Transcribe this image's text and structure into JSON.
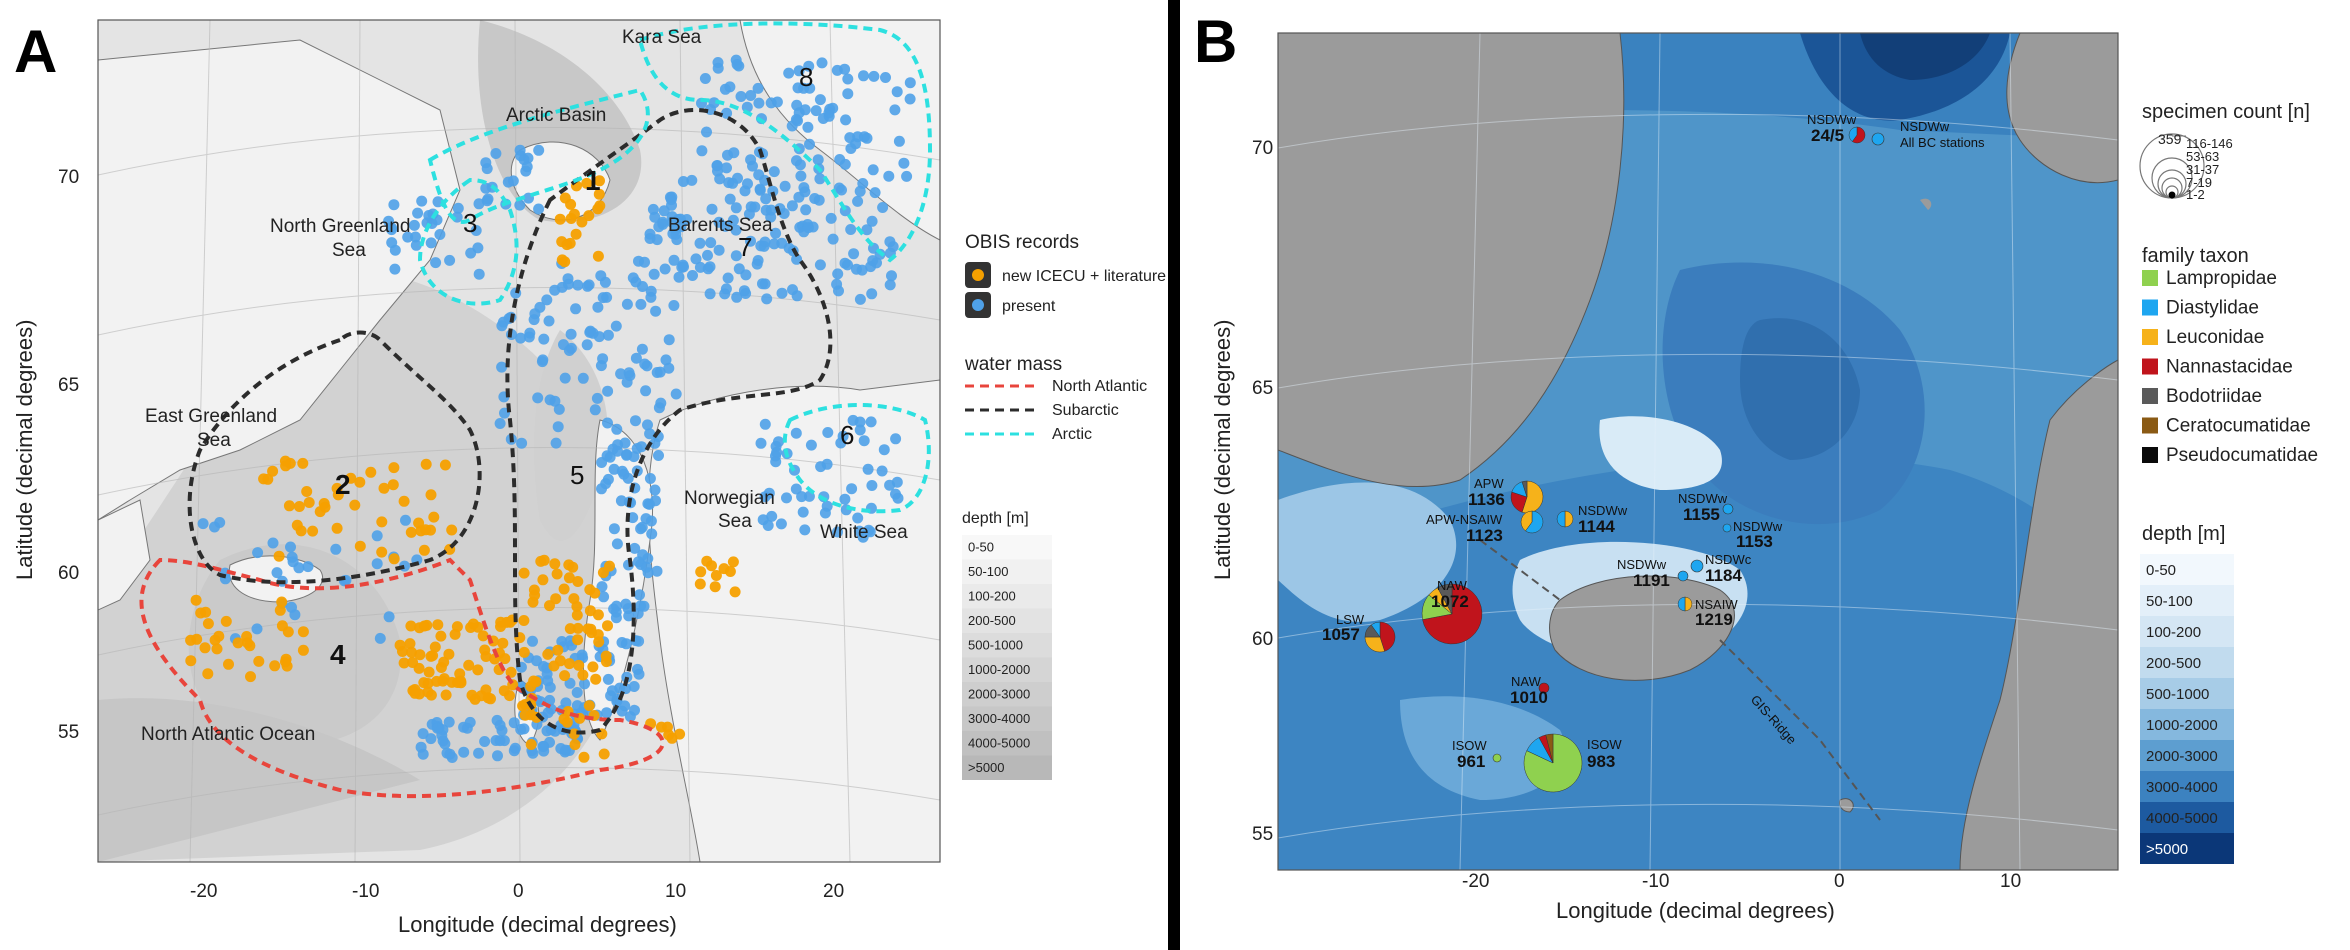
{
  "panel_a": {
    "label": "A",
    "y_axis_label": "Latitude (decimal degrees)",
    "x_axis_label": "Longitude (decimal degrees)",
    "lat_ticks": [
      "70",
      "65",
      "60",
      "55"
    ],
    "lon_ticks": [
      "-20",
      "-10",
      "0",
      "10",
      "20"
    ],
    "place_names": {
      "kara": "Kara Sea",
      "arctic_basin": "Arctic Basin",
      "north_greenland_1": "North Greenland",
      "north_greenland_2": "Sea",
      "barents": "Barents Sea",
      "east_greenland_1": "East Greenland",
      "east_greenland_2": "Sea",
      "norwegian_1": "Norwegian",
      "norwegian_2": "Sea",
      "white": "White Sea",
      "north_atlantic": "North Atlantic Ocean"
    },
    "regions": [
      "1",
      "2",
      "3",
      "4",
      "5",
      "6",
      "7",
      "8"
    ],
    "legend": {
      "obis_title": "OBIS records",
      "obis_new": "new ICECU + literature",
      "obis_present": "present",
      "water_title": "water mass",
      "water_na": "North Atlantic",
      "water_sub": "Subarctic",
      "water_arc": "Arctic",
      "depth_title": "depth [m]",
      "depth_bins": [
        "0-50",
        "50-100",
        "100-200",
        "200-500",
        "500-1000",
        "1000-2000",
        "2000-3000",
        "3000-4000",
        "4000-5000",
        ">5000"
      ]
    },
    "colors": {
      "new": "#f5a000",
      "present": "#4fa1e8",
      "north_atlantic": "#e8453c",
      "subarctic": "#2c2c2c",
      "arctic": "#2de0e0"
    }
  },
  "panel_b": {
    "label": "B",
    "y_axis_label": "Latitude (decimal degrees)",
    "x_axis_label": "Longitude (decimal degrees)",
    "lat_ticks": [
      "70",
      "65",
      "60",
      "55"
    ],
    "lon_ticks": [
      "-20",
      "-10",
      "0",
      "10"
    ],
    "ridge_label": "GIS-Ridge",
    "stations": [
      {
        "mass": "NSDWw",
        "num": "24/5",
        "extra": ""
      },
      {
        "mass": "NSDWw",
        "num": "",
        "extra": "All BC stations"
      },
      {
        "mass": "APW",
        "num": "1136",
        "extra": ""
      },
      {
        "mass": "NSDWw",
        "num": "1144",
        "extra": ""
      },
      {
        "mass": "APW-NSAIW",
        "num": "1123",
        "extra": ""
      },
      {
        "mass": "NSDWw",
        "num": "1155",
        "extra": ""
      },
      {
        "mass": "NSDWw",
        "num": "1153",
        "extra": ""
      },
      {
        "mass": "NSDWw",
        "num": "1191",
        "extra": ""
      },
      {
        "mass": "NSDWc",
        "num": "1184",
        "extra": ""
      },
      {
        "mass": "NSAIW",
        "num": "1219",
        "extra": ""
      },
      {
        "mass": "NAW",
        "num": "1072",
        "extra": ""
      },
      {
        "mass": "LSW",
        "num": "1057",
        "extra": ""
      },
      {
        "mass": "NAW",
        "num": "1010",
        "extra": ""
      },
      {
        "mass": "ISOW",
        "num": "961",
        "extra": ""
      },
      {
        "mass": "ISOW",
        "num": "983",
        "extra": ""
      }
    ],
    "legend": {
      "count_title": "specimen count [n]",
      "count_max": "359",
      "count_bins": [
        "116-146",
        "53-63",
        "31-37",
        "7-19",
        "1-2"
      ],
      "taxon_title": "family taxon",
      "taxa": [
        {
          "name": "Lampropidae",
          "color": "#8fd14f"
        },
        {
          "name": "Diastylidae",
          "color": "#1ea6f0"
        },
        {
          "name": "Leuconidae",
          "color": "#f6b21a"
        },
        {
          "name": "Nannastacidae",
          "color": "#c0141c"
        },
        {
          "name": "Bodotriidae",
          "color": "#5a5a5a"
        },
        {
          "name": "Ceratocumatidae",
          "color": "#8a5a14"
        },
        {
          "name": "Pseudocumatidae",
          "color": "#0a0a0a"
        }
      ],
      "depth_title": "depth [m]",
      "depth_bins": [
        "0-50",
        "50-100",
        "100-200",
        "200-500",
        "500-1000",
        "1000-2000",
        "2000-3000",
        "3000-4000",
        "4000-5000",
        ">5000"
      ]
    }
  }
}
